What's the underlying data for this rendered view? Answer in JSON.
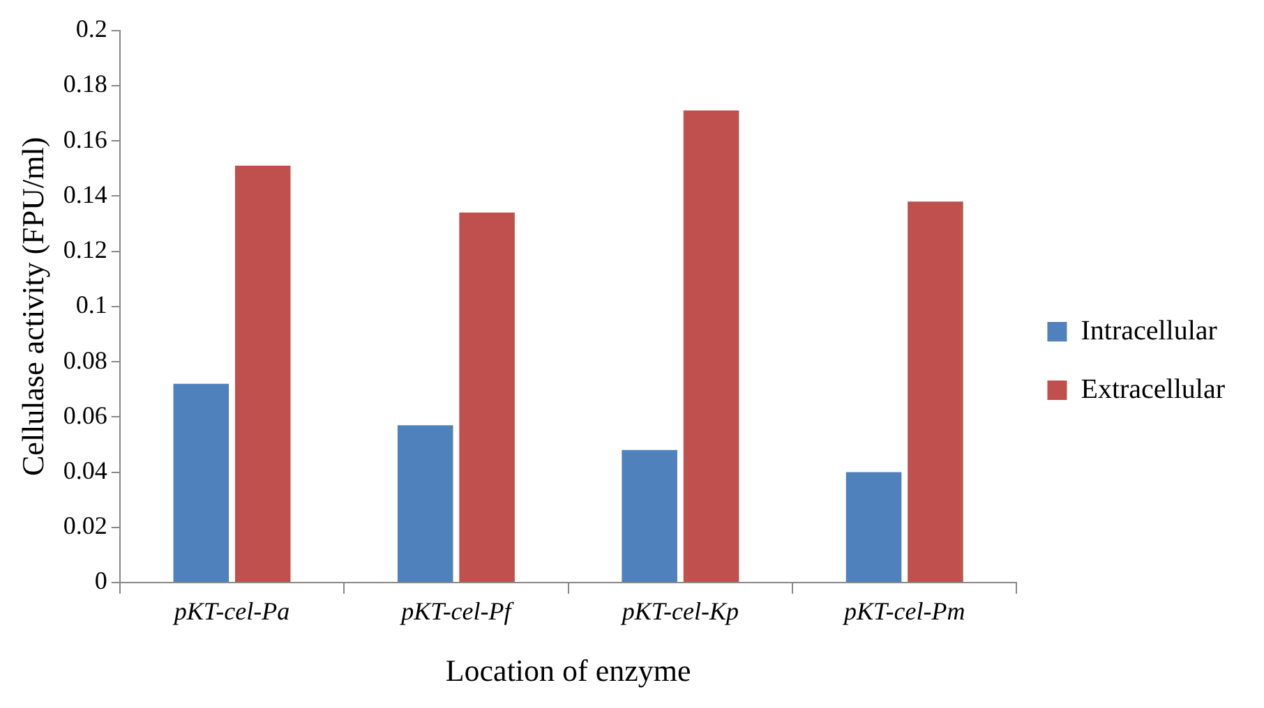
{
  "chart_data": {
    "type": "bar",
    "xlabel": "Location of enzyme",
    "ylabel": "Cellulase activity (FPU/ml)",
    "categories": [
      "pKT-cel-Pa",
      "pKT-cel-Pf",
      "pKT-cel-Kp",
      "pKT-cel-Pm"
    ],
    "series": [
      {
        "name": "Intracellular",
        "color": "#4f81bd",
        "values": [
          0.072,
          0.057,
          0.048,
          0.04
        ]
      },
      {
        "name": "Extracellular",
        "color": "#c0504d",
        "values": [
          0.151,
          0.134,
          0.171,
          0.138
        ]
      }
    ],
    "ylim": [
      0,
      0.2
    ],
    "yticks": [
      0,
      0.02,
      0.04,
      0.06,
      0.08,
      0.1,
      0.12,
      0.14,
      0.16,
      0.18,
      0.2
    ],
    "legend": "right"
  }
}
